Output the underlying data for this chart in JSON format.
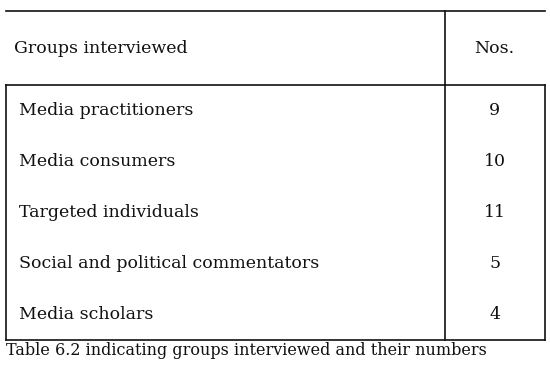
{
  "header": [
    "Groups interviewed",
    "Nos."
  ],
  "rows": [
    [
      "Media practitioners",
      "9"
    ],
    [
      "Media consumers",
      "10"
    ],
    [
      "Targeted individuals",
      "11"
    ],
    [
      "Social and political commentators",
      "5"
    ],
    [
      "Media scholars",
      "4"
    ]
  ],
  "caption": "Table 6.2 indicating groups interviewed and their numbers",
  "bg_color": "#ffffff",
  "text_color": "#111111",
  "font_size": 12.5,
  "header_font_size": 12.5,
  "caption_font_size": 11.5,
  "col_split": 0.815,
  "fig_width": 5.5,
  "fig_height": 3.78
}
